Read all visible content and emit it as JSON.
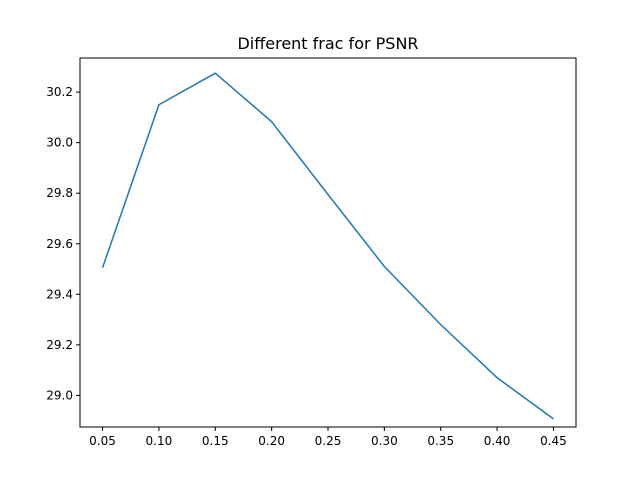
{
  "chart_data": {
    "type": "line",
    "title": "Different frac for PSNR",
    "xlabel": "",
    "ylabel": "",
    "x": [
      0.05,
      0.1,
      0.15,
      0.2,
      0.25,
      0.3,
      0.35,
      0.4,
      0.45
    ],
    "series": [
      {
        "color": "#1f77b4",
        "values": [
          29.505,
          30.15,
          30.275,
          30.083,
          29.795,
          29.51,
          29.28,
          29.07,
          28.907
        ]
      }
    ],
    "xlim": [
      0.03,
      0.47
    ],
    "ylim": [
      28.875,
      30.335
    ],
    "x_ticks": [
      "0.05",
      "0.10",
      "0.15",
      "0.20",
      "0.25",
      "0.30",
      "0.35",
      "0.40",
      "0.45"
    ],
    "y_ticks": [
      "29.0",
      "29.2",
      "29.4",
      "29.6",
      "29.8",
      "30.0",
      "30.2"
    ],
    "grid": false,
    "legend": "none"
  }
}
